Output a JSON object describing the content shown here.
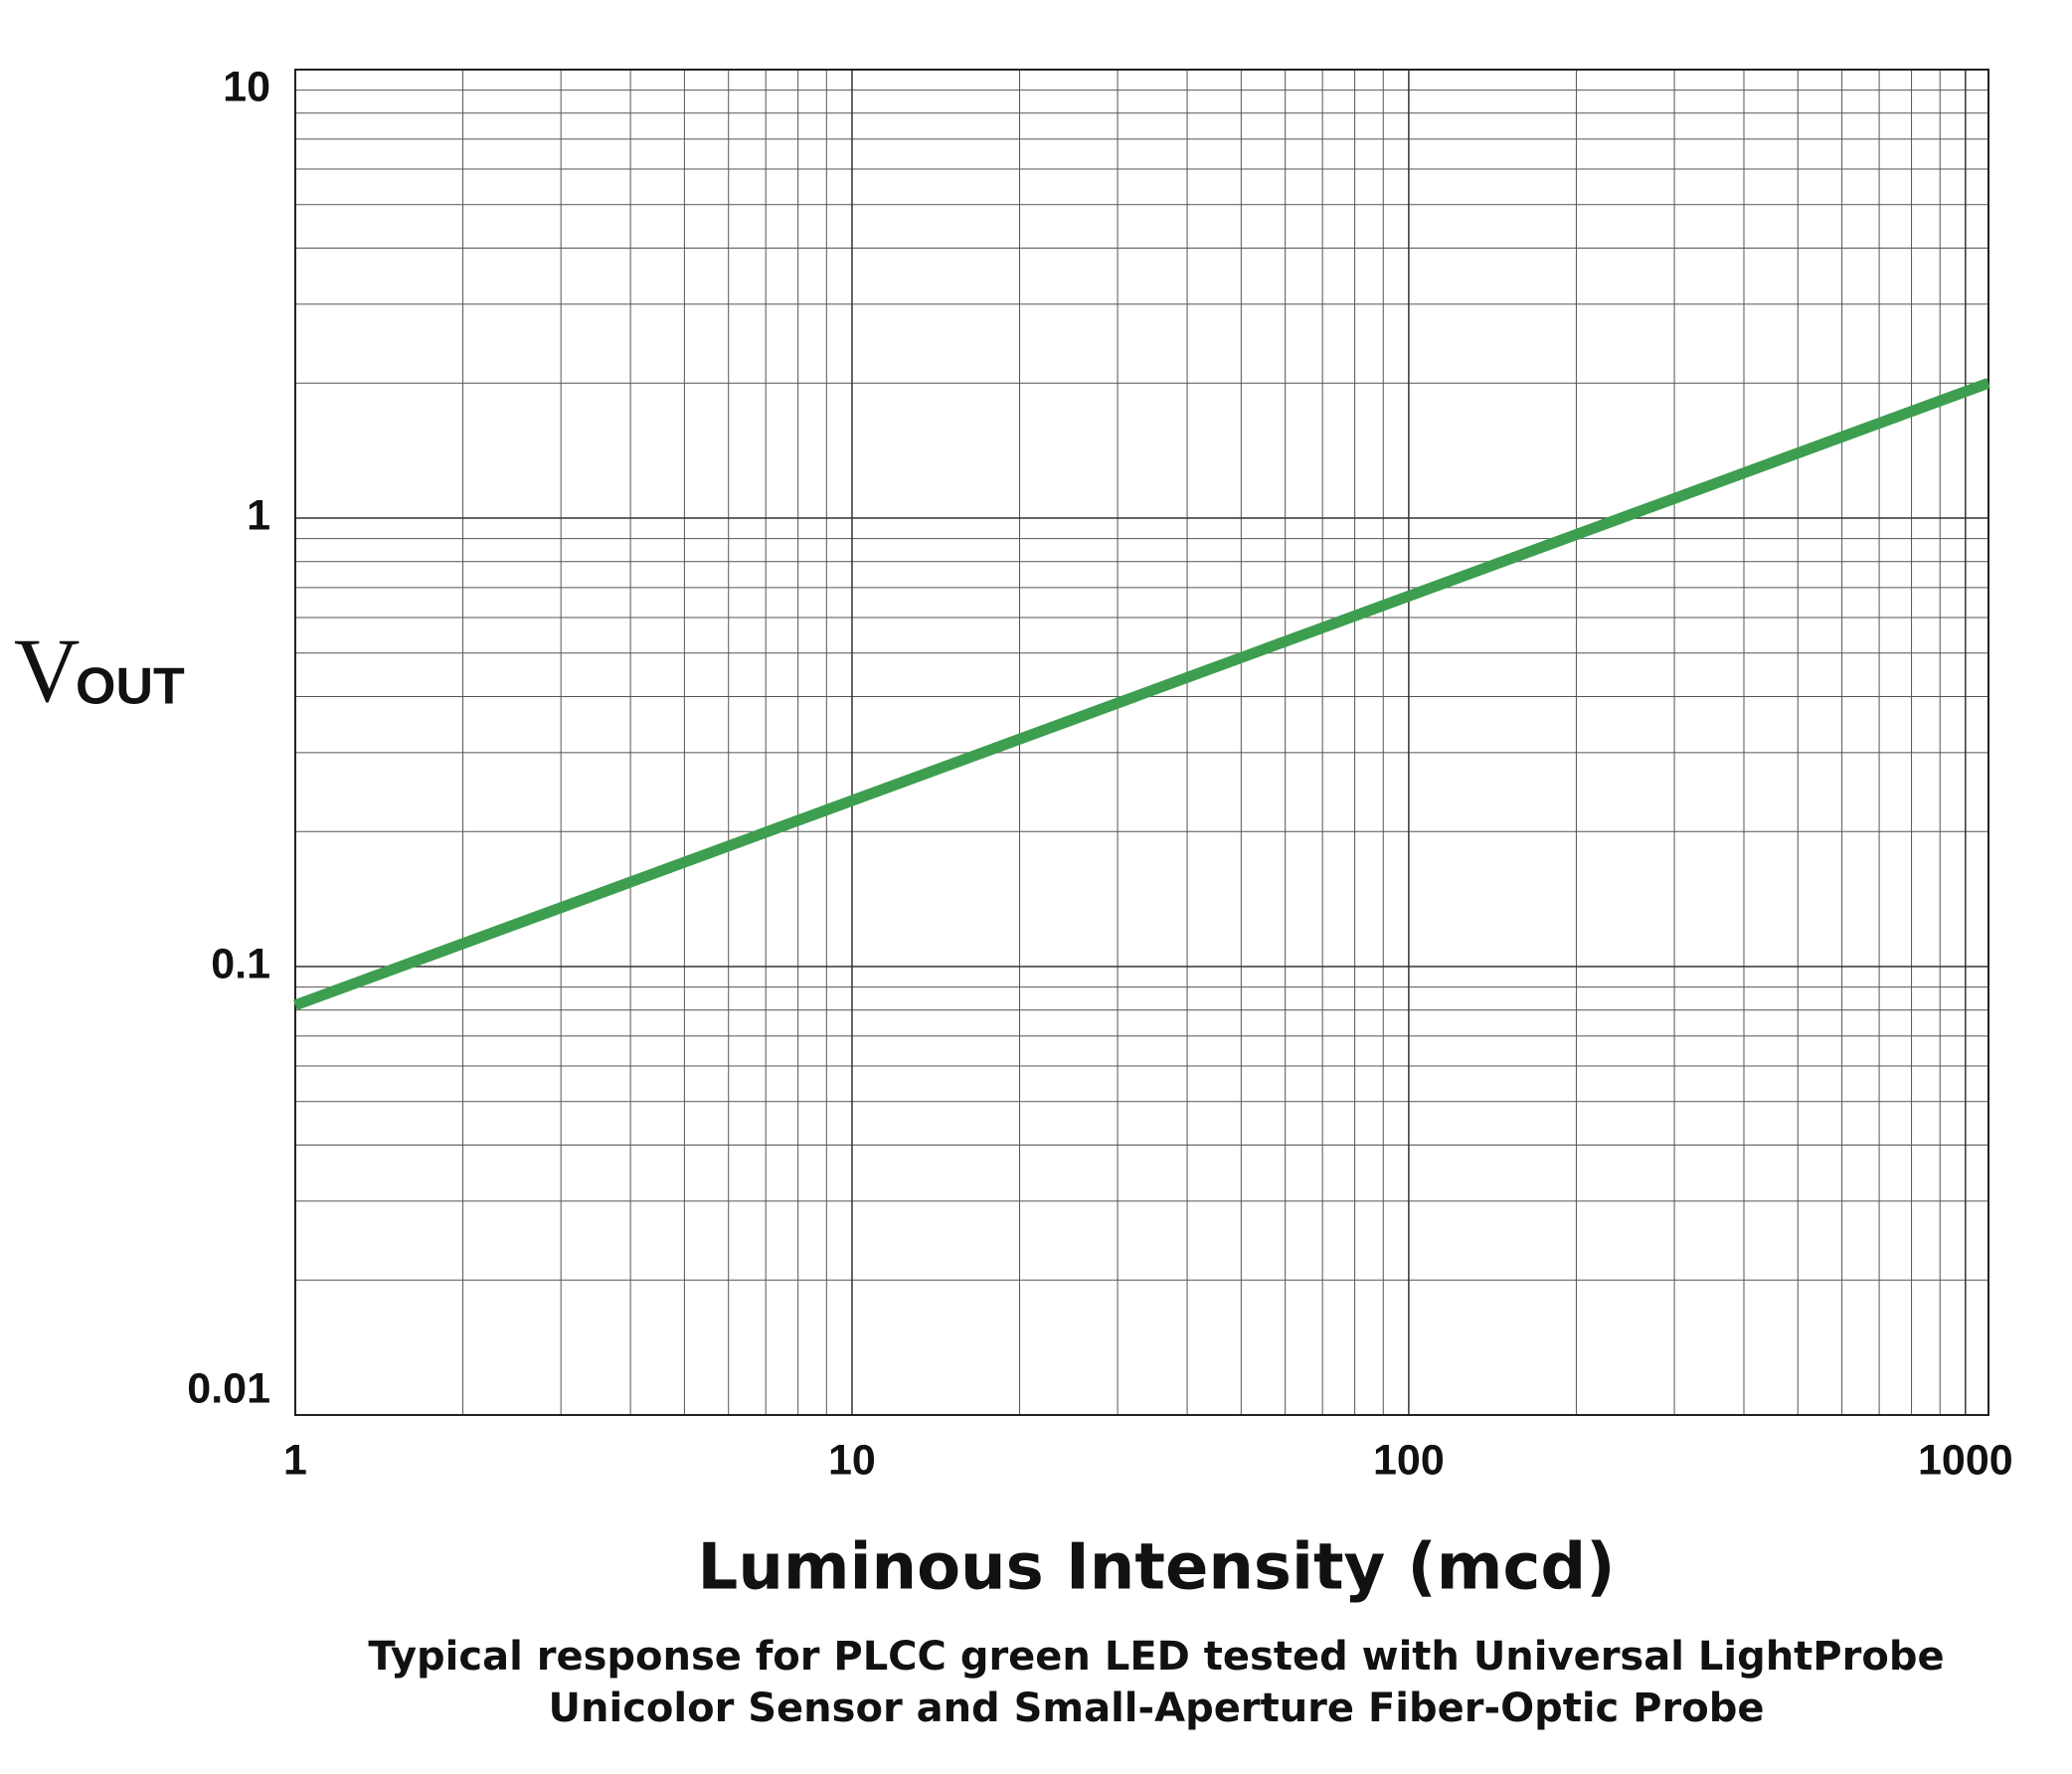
{
  "chart_data": {
    "type": "line",
    "xlabel": "Luminous Intensity (mcd)",
    "ylabel": {
      "text": "V",
      "subscript": "OUT"
    },
    "caption": [
      "Typical response for PLCC green LED tested with Universal LightProbe",
      "Unicolor Sensor and Small-Aperture Fiber-Optic Probe"
    ],
    "xscale": "log",
    "yscale": "log",
    "xlim": [
      1,
      1100
    ],
    "ylim": [
      0.01,
      10
    ],
    "xticks": [
      1,
      10,
      100,
      1000
    ],
    "yticks": [
      0.01,
      0.1,
      1,
      10
    ],
    "grid": true,
    "minor_grid": true,
    "series": [
      {
        "color": "#3d9e4f",
        "x": [
          1,
          1100
        ],
        "values": [
          0.082,
          2.0
        ]
      }
    ]
  }
}
